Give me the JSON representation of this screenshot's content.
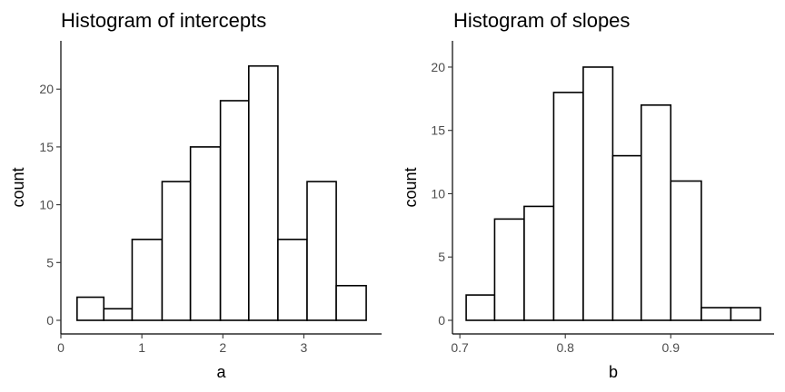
{
  "chart_data": [
    {
      "type": "bar",
      "title": "Histogram of intercepts",
      "xlabel": "a",
      "ylabel": "count",
      "bins": [
        [
          0.2,
          0.53
        ],
        [
          0.53,
          0.88
        ],
        [
          0.88,
          1.25
        ],
        [
          1.25,
          1.6
        ],
        [
          1.6,
          1.97
        ],
        [
          1.97,
          2.32
        ],
        [
          2.32,
          2.68
        ],
        [
          2.68,
          3.04
        ],
        [
          3.04,
          3.4
        ],
        [
          3.4,
          3.77
        ]
      ],
      "values": [
        2,
        1,
        7,
        12,
        15,
        19,
        22,
        7,
        12,
        3
      ],
      "xlim": [
        0,
        3.96
      ],
      "ylim": [
        0,
        23
      ],
      "xticks": [
        0,
        1,
        2,
        3
      ],
      "xtick_labels": [
        "0",
        "1",
        "2",
        "3"
      ],
      "yticks": [
        0,
        5,
        10,
        15,
        20
      ],
      "ytick_labels": [
        "0",
        "5",
        "10",
        "15",
        "20"
      ],
      "grid": false,
      "legend": "none"
    },
    {
      "type": "bar",
      "title": "Histogram of slopes",
      "xlabel": "b",
      "ylabel": "count",
      "bins": [
        [
          0.706,
          0.733
        ],
        [
          0.733,
          0.761
        ],
        [
          0.761,
          0.789
        ],
        [
          0.789,
          0.817
        ],
        [
          0.817,
          0.845
        ],
        [
          0.845,
          0.872
        ],
        [
          0.872,
          0.9
        ],
        [
          0.9,
          0.929
        ],
        [
          0.929,
          0.957
        ],
        [
          0.957,
          0.985
        ]
      ],
      "values": [
        2,
        8,
        9,
        18,
        20,
        13,
        17,
        11,
        1,
        1
      ],
      "xlim": [
        0.693,
        0.998
      ],
      "ylim": [
        0,
        21
      ],
      "xticks": [
        0.7,
        0.8,
        0.9
      ],
      "xtick_labels": [
        "0.7",
        "0.8",
        "0.9"
      ],
      "yticks": [
        0,
        5,
        10,
        15,
        20
      ],
      "ytick_labels": [
        "0",
        "5",
        "10",
        "15",
        "20"
      ],
      "grid": false,
      "legend": "none"
    }
  ]
}
